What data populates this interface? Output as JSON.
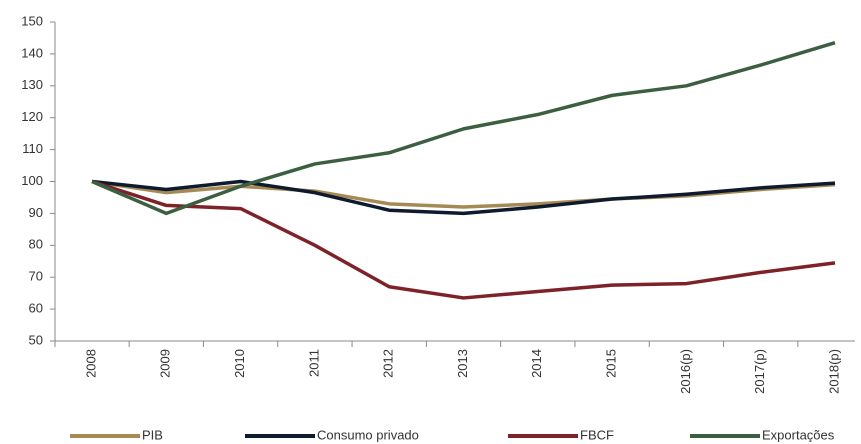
{
  "chart_data": {
    "type": "line",
    "categories": [
      "2008",
      "2009",
      "2010",
      "2011",
      "2012",
      "2013",
      "2014",
      "2015",
      "2016(p)",
      "2017(p)",
      "2018(p)"
    ],
    "series": [
      {
        "name": "PIB",
        "color": "#a68a56",
        "values": [
          100,
          96.5,
          98.5,
          97,
          93,
          92,
          93,
          94.5,
          95.5,
          97.5,
          99
        ]
      },
      {
        "name": "Consumo privado",
        "color": "#0e1a2d",
        "values": [
          100,
          97.5,
          100,
          96.5,
          91,
          90,
          92,
          94.5,
          96,
          98,
          99.5
        ]
      },
      {
        "name": "FBCF",
        "color": "#7d2228",
        "values": [
          100,
          92.5,
          91.5,
          80,
          67,
          63.5,
          65.5,
          67.5,
          68,
          71.5,
          74.5
        ]
      },
      {
        "name": "Exportações",
        "color": "#3b5f40",
        "values": [
          100,
          90,
          98.5,
          105.5,
          109,
          116.5,
          121,
          127,
          130,
          136.5,
          143.5
        ]
      }
    ],
    "ylim": [
      50,
      150
    ],
    "yticks": [
      50,
      60,
      70,
      80,
      90,
      100,
      110,
      120,
      130,
      140,
      150
    ],
    "grid": false,
    "legend": "bottom"
  }
}
